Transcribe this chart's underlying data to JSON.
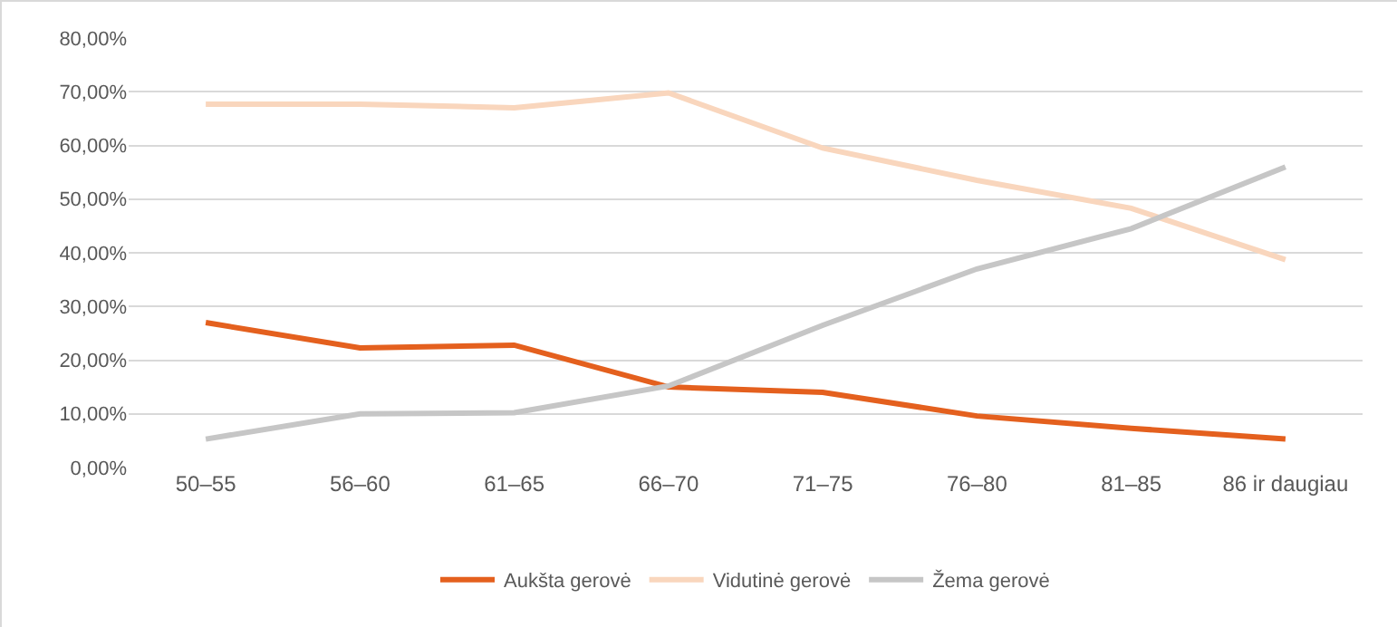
{
  "chart_data": {
    "type": "line",
    "categories": [
      "50–55",
      "56–60",
      "61–65",
      "66–70",
      "71–75",
      "76–80",
      "81–85",
      "86 ir daugiau"
    ],
    "series": [
      {
        "name": "Aukšta gerovė",
        "color": "#e4601e",
        "values": [
          27,
          22.3,
          22.8,
          15,
          14,
          9.6,
          7.3,
          5.3
        ]
      },
      {
        "name": "Vidutinė gerovė",
        "color": "#f9d6bd",
        "values": [
          67.7,
          67.7,
          67,
          69.8,
          59.5,
          53.5,
          48.3,
          38.7
        ]
      },
      {
        "name": "Žema gerovė",
        "color": "#c6c6c6",
        "values": [
          5.3,
          10,
          10.2,
          15.2,
          26.5,
          37,
          44.5,
          56
        ]
      }
    ],
    "ylim": [
      0,
      80
    ],
    "yticks": [
      {
        "value": 0,
        "label": "0,00%"
      },
      {
        "value": 10,
        "label": "10,00%"
      },
      {
        "value": 20,
        "label": "20,00%"
      },
      {
        "value": 30,
        "label": "30,00%"
      },
      {
        "value": 40,
        "label": "40,00%"
      },
      {
        "value": 50,
        "label": "50,00%"
      },
      {
        "value": 60,
        "label": "60,00%"
      },
      {
        "value": 70,
        "label": "70,00%"
      },
      {
        "value": 80,
        "label": "80,00%"
      }
    ],
    "grid": "y",
    "legend": "bottom",
    "marker": "none",
    "line_style": "solid"
  }
}
